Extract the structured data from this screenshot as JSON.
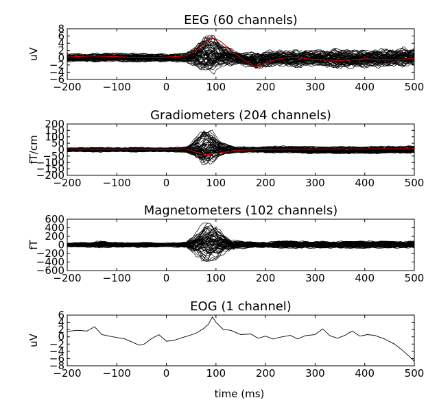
{
  "figure": {
    "xlabel": "time (ms)"
  },
  "chart_data": [
    {
      "type": "line",
      "title": "EEG (60 channels)",
      "ylabel": "uV",
      "xlim": [
        -200,
        500
      ],
      "ylim": [
        -6,
        8
      ],
      "xticks": [
        -200,
        -100,
        0,
        100,
        200,
        300,
        400,
        500
      ],
      "xtick_labels": [
        "−200",
        "−100",
        "0",
        "100",
        "200",
        "300",
        "400",
        "500"
      ],
      "yticks": [
        -6,
        -4,
        -2,
        0,
        2,
        4,
        6,
        8
      ],
      "ytick_labels": [
        "−6",
        "−4",
        "−2",
        "0",
        "2",
        "4",
        "6",
        "8"
      ],
      "n_channels": 60,
      "trace_color": "#000000",
      "highlight_color": "#cc0000",
      "highlight": {
        "x": [
          -200,
          -150,
          -100,
          -50,
          0,
          40,
          60,
          80,
          95,
          110,
          130,
          160,
          180,
          200,
          220,
          250,
          300,
          350,
          400,
          450,
          500
        ],
        "y": [
          0.2,
          0.5,
          0.3,
          0.0,
          0.2,
          0.5,
          2.0,
          4.5,
          5.5,
          4.5,
          2.0,
          -1.0,
          -2.5,
          -1.5,
          -0.5,
          0.2,
          -0.5,
          -0.8,
          -0.3,
          -0.6,
          -0.2
        ]
      },
      "envelope": {
        "x": [
          -200,
          -150,
          -100,
          -50,
          0,
          40,
          60,
          80,
          100,
          120,
          150,
          180,
          220,
          260,
          300,
          350,
          400,
          450,
          500
        ],
        "upper": [
          1.5,
          1.6,
          1.8,
          1.7,
          1.4,
          1.8,
          4.5,
          7.0,
          6.5,
          4.0,
          2.0,
          2.5,
          2.8,
          3.0,
          3.0,
          3.5,
          3.0,
          3.5,
          3.5
        ],
        "lower": [
          -1.5,
          -1.6,
          -1.5,
          -1.7,
          -1.4,
          -1.8,
          -3.5,
          -5.0,
          -4.5,
          -3.0,
          -2.5,
          -4.0,
          -3.0,
          -3.5,
          -3.0,
          -4.0,
          -3.5,
          -3.5,
          -3.0
        ]
      }
    },
    {
      "type": "line",
      "title": "Gradiometers (204 channels)",
      "ylabel": "fT/cm",
      "xlim": [
        -200,
        500
      ],
      "ylim": [
        -200,
        200
      ],
      "xticks": [
        -200,
        -100,
        0,
        100,
        200,
        300,
        400,
        500
      ],
      "xtick_labels": [
        "−200",
        "−100",
        "0",
        "100",
        "200",
        "300",
        "400",
        "500"
      ],
      "yticks": [
        -200,
        -150,
        -100,
        -50,
        0,
        50,
        100,
        150,
        200
      ],
      "ytick_labels": [
        "−200",
        "−150",
        "−100",
        "−50",
        "0",
        "50",
        "100",
        "150",
        "200"
      ],
      "n_channels": 204,
      "trace_color": "#000000",
      "highlight_color": "#cc0000",
      "highlight": {
        "x": [
          -200,
          -100,
          0,
          40,
          60,
          80,
          100,
          140,
          200,
          300,
          400,
          500
        ],
        "y": [
          5,
          3,
          2,
          5,
          -20,
          -40,
          -30,
          -5,
          2,
          5,
          5,
          10
        ]
      },
      "envelope": {
        "x": [
          -200,
          -150,
          -100,
          -50,
          0,
          40,
          60,
          75,
          90,
          110,
          140,
          180,
          250,
          300,
          400,
          500
        ],
        "upper": [
          20,
          25,
          22,
          25,
          20,
          30,
          120,
          180,
          160,
          80,
          30,
          30,
          40,
          35,
          35,
          40
        ],
        "lower": [
          -20,
          -25,
          -22,
          -25,
          -20,
          -30,
          -90,
          -140,
          -110,
          -60,
          -30,
          -30,
          -35,
          -40,
          -40,
          -35
        ]
      }
    },
    {
      "type": "line",
      "title": "Magnetometers (102 channels)",
      "ylabel": "fT",
      "xlim": [
        -200,
        500
      ],
      "ylim": [
        -600,
        600
      ],
      "xticks": [
        -200,
        -100,
        0,
        100,
        200,
        300,
        400,
        500
      ],
      "xtick_labels": [
        "−200",
        "−100",
        "0",
        "100",
        "200",
        "300",
        "400",
        "500"
      ],
      "yticks": [
        -600,
        -400,
        -200,
        0,
        200,
        400,
        600
      ],
      "ytick_labels": [
        "−600",
        "−400",
        "−200",
        "0",
        "200",
        "400",
        "600"
      ],
      "n_channels": 102,
      "trace_color": "#000000",
      "envelope": {
        "x": [
          -200,
          -150,
          -140,
          -100,
          -50,
          0,
          40,
          60,
          75,
          100,
          130,
          180,
          250,
          300,
          400,
          500
        ],
        "upper": [
          60,
          80,
          120,
          70,
          80,
          60,
          80,
          350,
          520,
          480,
          150,
          80,
          130,
          100,
          120,
          110
        ],
        "lower": [
          -60,
          -80,
          -100,
          -70,
          -80,
          -60,
          -80,
          -300,
          -400,
          -350,
          -150,
          -80,
          -110,
          -100,
          -110,
          -100
        ]
      }
    },
    {
      "type": "line",
      "title": "EOG (1 channel)",
      "ylabel": "uV",
      "xlim": [
        -200,
        500
      ],
      "ylim": [
        -8,
        6
      ],
      "xticks": [
        -200,
        -100,
        0,
        100,
        200,
        300,
        400,
        500
      ],
      "xtick_labels": [
        "−200",
        "−100",
        "0",
        "100",
        "200",
        "300",
        "400",
        "500"
      ],
      "yticks": [
        -8,
        -6,
        -4,
        -2,
        0,
        2,
        4,
        6
      ],
      "ytick_labels": [
        "−8",
        "−6",
        "−4",
        "−2",
        "0",
        "2",
        "4",
        "6"
      ],
      "n_channels": 1,
      "trace_color": "#000000",
      "series": [
        {
          "x": [
            -200,
            -180,
            -160,
            -145,
            -130,
            -115,
            -100,
            -85,
            -70,
            -55,
            -45,
            -30,
            -15,
            0,
            15,
            30,
            45,
            60,
            75,
            85,
            93,
            100,
            115,
            130,
            150,
            170,
            185,
            200,
            215,
            230,
            250,
            265,
            280,
            300,
            315,
            330,
            345,
            360,
            375,
            390,
            405,
            420,
            440,
            460,
            475,
            490,
            500
          ],
          "y": [
            1.5,
            1.8,
            1.6,
            2.8,
            0.6,
            0.2,
            -0.2,
            -0.5,
            -1.4,
            -2.3,
            -2.0,
            -0.5,
            0.6,
            -1.2,
            -1.0,
            -0.3,
            0.3,
            1.0,
            2.3,
            3.5,
            5.5,
            4.0,
            2.0,
            1.8,
            0.6,
            0.8,
            -0.4,
            0.2,
            -0.6,
            -0.1,
            0.4,
            -0.6,
            0.3,
            0.6,
            2.2,
            0.3,
            -0.4,
            0.4,
            1.6,
            0.2,
            0.6,
            0.4,
            -0.6,
            -2.0,
            -3.6,
            -5.4,
            -6.8
          ]
        }
      ]
    }
  ]
}
